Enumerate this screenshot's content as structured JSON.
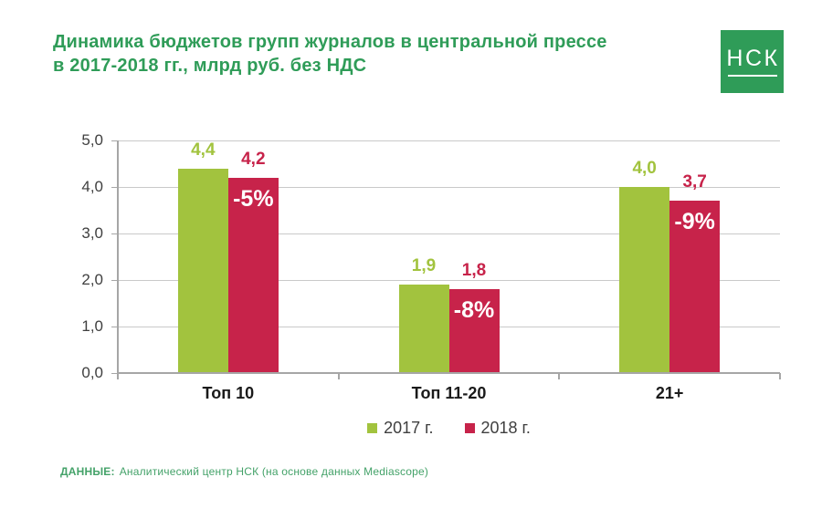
{
  "header": {
    "title_line1": "Динамика бюджетов групп журналов в центральной прессе",
    "title_line2": "в 2017-2018 гг., млрд руб. без НДС"
  },
  "logo": {
    "text": "НСК"
  },
  "chart_data": {
    "type": "bar",
    "title": "Динамика бюджетов групп журналов в центральной прессе в 2017-2018 гг., млрд руб. без НДС",
    "categories": [
      "Топ 10",
      "Топ 11-20",
      "21+"
    ],
    "series": [
      {
        "name": "2017 г.",
        "color": "#A2C33E",
        "values": [
          4.4,
          1.9,
          4.0
        ],
        "labels": [
          "4,4",
          "1,9",
          "4,0"
        ]
      },
      {
        "name": "2018 г.",
        "color": "#C7234A",
        "values": [
          4.2,
          1.8,
          3.7
        ],
        "labels": [
          "4,2",
          "1,8",
          "3,7"
        ],
        "deltas": [
          "-5%",
          "-8%",
          "-9%"
        ]
      }
    ],
    "ylim": [
      0,
      5
    ],
    "ytick_step": 1,
    "yticks": [
      "0,0",
      "1,0",
      "2,0",
      "3,0",
      "4,0",
      "5,0"
    ],
    "grid": true,
    "legend_position": "bottom-center",
    "xlabel": "",
    "ylabel": ""
  },
  "footer": {
    "label": "ДАННЫЕ:",
    "text": "Аналитический центр НСК (на основе данных Mediascope)"
  },
  "colors": {
    "title_green": "#2F9C58",
    "logo_bg": "#2F9C58",
    "logo_text": "#FFFFFF",
    "footer_green": "#44A269",
    "bar_2017": "#A2C33E",
    "bar_2018": "#C7234A",
    "grid_line": "#C9C9C9",
    "axis_line": "#A6A6A6",
    "tick_label": "#3F3F3F",
    "category_label": "#1A1A1A",
    "delta_text": "#FFFFFF"
  }
}
